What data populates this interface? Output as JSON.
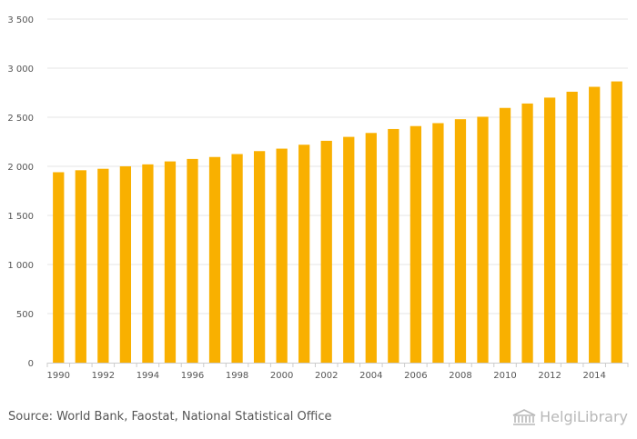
{
  "chart_data": {
    "type": "bar",
    "categories": [
      "1990",
      "1991",
      "1992",
      "1993",
      "1994",
      "1995",
      "1996",
      "1997",
      "1998",
      "1999",
      "2000",
      "2001",
      "2002",
      "2003",
      "2004",
      "2005",
      "2006",
      "2007",
      "2008",
      "2009",
      "2010",
      "2011",
      "2012",
      "2013",
      "2014",
      "2015"
    ],
    "x_tick_labels": [
      "1990",
      "1992",
      "1994",
      "1996",
      "1998",
      "2000",
      "2002",
      "2004",
      "2006",
      "2008",
      "2010",
      "2012",
      "2014"
    ],
    "values": [
      1940,
      1960,
      1975,
      2000,
      2020,
      2050,
      2075,
      2095,
      2125,
      2155,
      2180,
      2220,
      2260,
      2300,
      2340,
      2380,
      2410,
      2440,
      2480,
      2505,
      2595,
      2640,
      2700,
      2760,
      2810,
      2865
    ],
    "ylim": [
      0,
      3500
    ],
    "y_ticks": [
      0,
      500,
      1000,
      1500,
      2000,
      2500,
      3000,
      3500
    ],
    "y_tick_labels": [
      "0",
      "500",
      "1 000",
      "1 500",
      "2 000",
      "2 500",
      "3 000",
      "3 500"
    ],
    "grid": true,
    "bar_color": "#f9b000",
    "title": "",
    "xlabel": "",
    "ylabel": ""
  },
  "footer": {
    "source": "Source: World Bank, Faostat, National Statistical Office",
    "logo_text": "HelgiLibrary"
  }
}
